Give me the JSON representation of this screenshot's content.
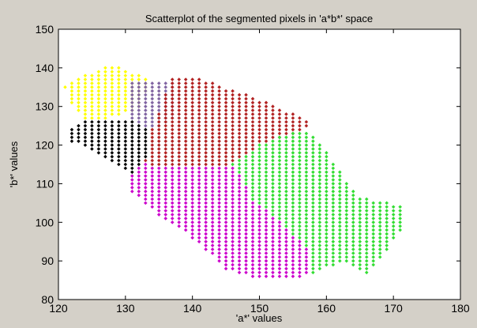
{
  "chart_data": {
    "type": "scatter",
    "title": "Scatterplot of the segmented pixels in 'a*b*' space",
    "xlabel": "'a*' values",
    "ylabel": "'b*' values",
    "xlim": [
      120,
      180
    ],
    "ylim": [
      80,
      150
    ],
    "xticks": [
      120,
      130,
      140,
      150,
      160,
      170,
      180
    ],
    "yticks": [
      80,
      90,
      100,
      110,
      120,
      130,
      140,
      150
    ],
    "grid": false,
    "legend": "none",
    "marker": "diamond",
    "clusters": [
      {
        "color": "#ffff00",
        "polygon": [
          [
            121,
            135
          ],
          [
            124,
            138
          ],
          [
            128,
            141
          ],
          [
            131,
            139
          ],
          [
            134,
            137
          ],
          [
            133,
            133
          ],
          [
            132,
            129
          ],
          [
            128,
            127
          ],
          [
            124,
            127
          ],
          [
            122,
            131
          ]
        ]
      },
      {
        "color": "#8064a2",
        "polygon": [
          [
            131,
            137
          ],
          [
            133,
            137
          ],
          [
            136,
            137
          ],
          [
            138,
            136
          ],
          [
            138,
            132
          ],
          [
            138,
            127
          ],
          [
            134,
            124
          ],
          [
            131,
            126
          ]
        ]
      },
      {
        "color": "#000000",
        "polygon": [
          [
            122,
            124
          ],
          [
            124,
            127
          ],
          [
            128,
            127
          ],
          [
            132,
            126
          ],
          [
            134,
            124
          ],
          [
            134,
            120
          ],
          [
            133,
            116
          ],
          [
            131,
            112
          ],
          [
            127,
            117
          ],
          [
            122,
            121
          ]
        ]
      },
      {
        "color": "#b22222",
        "polygon": [
          [
            134,
            124
          ],
          [
            137,
            138
          ],
          [
            140,
            138
          ],
          [
            145,
            135
          ],
          [
            150,
            132
          ],
          [
            154,
            129
          ],
          [
            158,
            126
          ],
          [
            157,
            124
          ],
          [
            150,
            120
          ],
          [
            148,
            117
          ],
          [
            146,
            115
          ],
          [
            140,
            115
          ],
          [
            134,
            115
          ],
          [
            133,
            116
          ],
          [
            134,
            120
          ]
        ]
      },
      {
        "color": "#cc00cc",
        "polygon": [
          [
            131,
            112
          ],
          [
            133,
            116
          ],
          [
            134,
            115
          ],
          [
            140,
            115
          ],
          [
            146,
            115
          ],
          [
            148,
            110
          ],
          [
            149,
            106
          ],
          [
            152,
            102
          ],
          [
            155,
            97
          ],
          [
            158,
            92
          ],
          [
            157,
            86
          ],
          [
            150,
            85
          ],
          [
            145,
            88
          ],
          [
            140,
            96
          ],
          [
            135,
            102
          ],
          [
            131,
            108
          ]
        ]
      },
      {
        "color": "#33dd33",
        "polygon": [
          [
            146,
            115
          ],
          [
            148,
            117
          ],
          [
            150,
            120
          ],
          [
            153,
            122
          ],
          [
            157,
            124
          ],
          [
            159,
            121
          ],
          [
            161,
            116
          ],
          [
            163,
            111
          ],
          [
            165,
            107
          ],
          [
            167,
            106
          ],
          [
            170,
            105
          ],
          [
            172,
            104
          ],
          [
            172,
            99
          ],
          [
            170,
            95
          ],
          [
            168,
            90
          ],
          [
            166,
            86
          ],
          [
            163,
            90
          ],
          [
            160,
            88
          ],
          [
            158,
            86
          ],
          [
            158,
            92
          ],
          [
            155,
            97
          ],
          [
            152,
            102
          ],
          [
            149,
            106
          ],
          [
            148,
            110
          ]
        ]
      }
    ]
  }
}
